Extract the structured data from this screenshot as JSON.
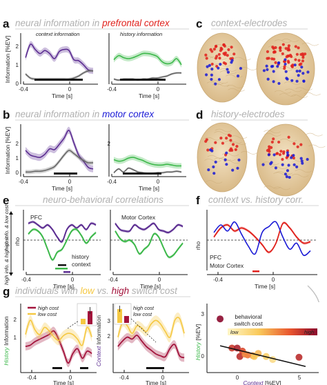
{
  "panel_labels": {
    "a": "a",
    "b": "b",
    "c": "c",
    "d": "d",
    "e": "e",
    "f": "f",
    "g": "g"
  },
  "titles": {
    "a_pre": "neural information in ",
    "a_hl": "prefrontal cortex",
    "b_pre": "neural information in ",
    "b_hl": "motor cortex",
    "c": "context-electrodes",
    "d": "history-electrodes",
    "e": "neuro-behavioral correlations",
    "f": "context vs. history corr.",
    "g_pre": "individuals with ",
    "g_low": "low",
    "g_mid": " vs. ",
    "g_high": "high",
    "g_post": " switch cost"
  },
  "colors": {
    "context": "#5b2c91",
    "history": "#3cb84a",
    "grey": "#666666",
    "pfc": "#e0201b",
    "motor": "#1a1ad6",
    "high_cost": "#a3143c",
    "low_cost": "#f5c842",
    "brain": "#e8cfa2"
  },
  "labels": {
    "info_axis": "Information [%EV]",
    "time_axis": "Time [s]",
    "rho": "rho",
    "context_information": "context information",
    "history_information": "history information",
    "pfc": "PFC",
    "motor_cortex": "Motor Cortex",
    "history": "history",
    "context": "context",
    "e_top_side": "high info. & low cost",
    "e_bottom_side": "high info. & high cost",
    "high_cost": "high cost",
    "low_cost": "low cost",
    "history_info_axis_word": "History",
    "context_info_axis_word": "Context",
    "info_axis_rest": " Information",
    "scatter_x_word": "Context",
    "scatter_x_rest": " [%EV]",
    "scatter_y_word": "History",
    "scatter_y_rest": " [%EV]",
    "behavioral_switch_cost": "behavioral\nswitch cost",
    "low": "low",
    "high": "high"
  },
  "ticks": {
    "t_neg04": "-0.4",
    "t0": "0",
    "y0": "0",
    "y1": "1",
    "y2": "2",
    "y3": "3",
    "sx0": "0",
    "sx5": "5"
  },
  "chart_data": [
    {
      "panel": "a-left",
      "type": "line",
      "xlabel": "Time [s]",
      "ylabel": "Information [%EV]",
      "xlim": [
        -0.5,
        0.3
      ],
      "ylim": [
        -0.2,
        2.3
      ],
      "series": [
        {
          "name": "context information",
          "x": [
            -0.45,
            -0.4,
            -0.35,
            -0.3,
            -0.25,
            -0.2,
            -0.15,
            -0.1,
            -0.05,
            0,
            0.05,
            0.1,
            0.15,
            0.2,
            0.25
          ],
          "values": [
            1.1,
            1.75,
            1.5,
            1.3,
            1.45,
            1.3,
            1.05,
            1.4,
            1.5,
            1.45,
            1.0,
            0.95,
            0.75,
            0.5,
            0.45
          ]
        },
        {
          "x": [
            -0.45,
            -0.4,
            -0.35,
            -0.3,
            -0.25,
            -0.2,
            -0.15,
            -0.1,
            -0.05,
            0,
            0.05,
            0.1,
            0.15,
            0.2,
            0.25
          ],
          "values": [
            0.3,
            0.1,
            0.05,
            0.05,
            0.05,
            0.05,
            0.05,
            0.05,
            0.05,
            0.05,
            0.1,
            0.2,
            0.35,
            0.45,
            0.45
          ]
        }
      ]
    },
    {
      "panel": "a-right",
      "type": "line",
      "xlim": [
        -0.5,
        0.3
      ],
      "ylim": [
        -0.2,
        2.3
      ],
      "series": [
        {
          "name": "history information",
          "x": [
            -0.45,
            -0.4,
            -0.35,
            -0.3,
            -0.25,
            -0.2,
            -0.15,
            -0.1,
            -0.05,
            0,
            0.05,
            0.1,
            0.15,
            0.2,
            0.25
          ],
          "values": [
            1.0,
            1.2,
            1.1,
            1.05,
            1.1,
            1.2,
            1.3,
            1.3,
            1.25,
            1.15,
            0.9,
            0.8,
            0.85,
            1.05,
            0.75
          ]
        },
        {
          "x": [
            -0.45,
            -0.4,
            -0.35,
            -0.3,
            -0.25,
            -0.2,
            -0.15,
            -0.1,
            -0.05,
            0,
            0.05,
            0.1,
            0.15,
            0.2,
            0.25
          ],
          "values": [
            0.05,
            0.0,
            0.05,
            0.05,
            0.05,
            0.0,
            0.05,
            0.05,
            0.1,
            0.1,
            0.15,
            0.2,
            0.3,
            0.35,
            0.35
          ]
        }
      ]
    },
    {
      "panel": "b-left",
      "type": "line",
      "xlim": [
        -0.5,
        0.3
      ],
      "ylim": [
        -0.2,
        3.2
      ],
      "series": [
        {
          "x": [
            -0.45,
            -0.4,
            -0.35,
            -0.3,
            -0.25,
            -0.2,
            -0.15,
            -0.1,
            -0.05,
            0,
            0.05,
            0.1,
            0.15,
            0.2,
            0.25
          ],
          "values": [
            1.5,
            1.2,
            1.1,
            1.05,
            1.25,
            1.6,
            1.55,
            1.9,
            2.3,
            2.8,
            2.0,
            1.2,
            0.8,
            0.4,
            0.3
          ]
        },
        {
          "x": [
            -0.45,
            -0.4,
            -0.35,
            -0.3,
            -0.25,
            -0.2,
            -0.15,
            -0.1,
            -0.05,
            0,
            0.05,
            0.1,
            0.15,
            0.2,
            0.25
          ],
          "values": [
            0.1,
            0.1,
            0.15,
            0.15,
            0.2,
            0.3,
            0.45,
            0.8,
            1.2,
            1.5,
            1.3,
            1.05,
            0.85,
            0.7,
            0.7
          ]
        }
      ]
    },
    {
      "panel": "b-right",
      "type": "line",
      "xlim": [
        -0.5,
        0.3
      ],
      "ylim": [
        -0.2,
        3.2
      ],
      "series": [
        {
          "x": [
            -0.45,
            -0.4,
            -0.35,
            -0.3,
            -0.25,
            -0.2,
            -0.15,
            -0.1,
            -0.05,
            0,
            0.05,
            0.1,
            0.15,
            0.2,
            0.25
          ],
          "values": [
            0.9,
            0.8,
            0.85,
            1.0,
            1.05,
            0.95,
            0.85,
            0.7,
            0.6,
            0.55,
            0.55,
            0.6,
            0.55,
            0.5,
            0.5
          ]
        },
        {
          "x": [
            -0.45,
            -0.4,
            -0.35,
            -0.3,
            -0.25,
            -0.2,
            -0.15,
            -0.1,
            -0.05,
            0,
            0.05,
            0.1,
            0.15,
            0.2,
            0.25
          ],
          "values": [
            0.05,
            0.3,
            0.1,
            0.35,
            0.25,
            0.1,
            0.05,
            0.0,
            0.0,
            0.05,
            0.05,
            0.1,
            0.1,
            0.15,
            0.1
          ]
        }
      ]
    },
    {
      "panel": "e-left",
      "type": "line",
      "xlabel": "Time [s]",
      "ylabel": "rho",
      "xlim": [
        -0.5,
        0.3
      ],
      "ylim": [
        -1,
        1
      ],
      "series": [
        {
          "name": "context",
          "x": [
            -0.45,
            -0.4,
            -0.35,
            -0.3,
            -0.25,
            -0.2,
            -0.15,
            -0.1,
            -0.05,
            0,
            0.05,
            0.1,
            0.15,
            0.2,
            0.25
          ],
          "values": [
            0.55,
            0.6,
            0.5,
            0.4,
            0.5,
            0.35,
            0.1,
            -0.05,
            0.35,
            0.5,
            0.4,
            0.5,
            0.35,
            0.55,
            0.5
          ]
        },
        {
          "name": "history",
          "x": [
            -0.45,
            -0.4,
            -0.35,
            -0.3,
            -0.25,
            -0.2,
            -0.15,
            -0.1,
            -0.05,
            0,
            0.05,
            0.1,
            0.15,
            0.2,
            0.25
          ],
          "values": [
            0.2,
            0.35,
            0.3,
            0.1,
            -0.3,
            -0.65,
            -0.4,
            -0.3,
            0.0,
            0.3,
            0.35,
            0.15,
            -0.1,
            0.1,
            0.25
          ]
        }
      ]
    },
    {
      "panel": "e-right",
      "type": "line",
      "xlim": [
        -0.5,
        0.3
      ],
      "ylim": [
        -1,
        1
      ],
      "series": [
        {
          "x": [
            -0.45,
            -0.4,
            -0.35,
            -0.3,
            -0.25,
            -0.2,
            -0.15,
            -0.1,
            -0.05,
            0,
            0.05,
            0.1,
            0.15,
            0.2,
            0.25
          ],
          "values": [
            0.55,
            0.35,
            0.3,
            0.3,
            0.5,
            0.4,
            0.35,
            0.45,
            0.55,
            0.35,
            0.3,
            0.25,
            0.35,
            0.5,
            0.45
          ]
        },
        {
          "x": [
            -0.45,
            -0.4,
            -0.35,
            -0.3,
            -0.25,
            -0.2,
            -0.15,
            -0.1,
            -0.05,
            0,
            0.05,
            0.1,
            0.15,
            0.2,
            0.25
          ],
          "values": [
            0.3,
            0.05,
            -0.05,
            0.0,
            -0.15,
            -0.45,
            -0.3,
            -0.15,
            0.2,
            0.1,
            -0.25,
            -0.55,
            -0.5,
            -0.3,
            -0.1
          ]
        }
      ]
    },
    {
      "panel": "f",
      "type": "line",
      "xlim": [
        -0.5,
        0.3
      ],
      "ylim": [
        -1,
        1
      ],
      "series": [
        {
          "name": "PFC",
          "x": [
            -0.45,
            -0.4,
            -0.35,
            -0.3,
            -0.25,
            -0.2,
            -0.15,
            -0.1,
            -0.05,
            0,
            0.05,
            0.1,
            0.15,
            0.2,
            0.25
          ],
          "values": [
            0.1,
            0.4,
            0.5,
            0.3,
            0.4,
            0.3,
            0.1,
            -0.15,
            -0.4,
            -0.1,
            0.55,
            0.4,
            0.1,
            -0.1,
            -0.05
          ]
        },
        {
          "name": "Motor Cortex",
          "x": [
            -0.45,
            -0.4,
            -0.35,
            -0.3,
            -0.25,
            -0.2,
            -0.15,
            -0.1,
            -0.05,
            0,
            0.05,
            0.1,
            0.15,
            0.2,
            0.25
          ],
          "values": [
            0.25,
            0.5,
            0.3,
            0.6,
            0.2,
            -0.2,
            -0.45,
            0.25,
            0.45,
            0.6,
            0.1,
            -0.3,
            -0.1,
            -0.5,
            -0.35
          ]
        }
      ]
    },
    {
      "panel": "g-left",
      "type": "line",
      "xlabel": "Time [s]",
      "ylabel": "History Information",
      "xlim": [
        -0.5,
        0.3
      ],
      "ylim": [
        -0.3,
        2.6
      ],
      "series": [
        {
          "name": "high cost",
          "x": [
            -0.45,
            -0.4,
            -0.35,
            -0.3,
            -0.25,
            -0.2,
            -0.15,
            -0.1,
            -0.05,
            0,
            0.05,
            0.1,
            0.15,
            0.2,
            0.25
          ],
          "values": [
            0.8,
            0.85,
            1.0,
            1.1,
            1.2,
            1.3,
            1.45,
            1.1,
            0.6,
            0.1,
            0.5,
            0.7,
            0.3,
            0.6,
            0.5
          ]
        },
        {
          "name": "low cost",
          "x": [
            -0.45,
            -0.4,
            -0.35,
            -0.3,
            -0.25,
            -0.2,
            -0.15,
            -0.1,
            -0.05,
            0,
            0.05,
            0.1,
            0.15,
            0.2,
            0.25
          ],
          "values": [
            1.3,
            1.9,
            1.5,
            1.3,
            1.6,
            1.45,
            1.2,
            1.05,
            1.25,
            1.35,
            1.3,
            1.1,
            0.85,
            1.6,
            1.2
          ]
        }
      ]
    },
    {
      "panel": "g-middle",
      "type": "line",
      "xlabel": "Time [s]",
      "ylabel": "Context Information",
      "xlim": [
        -0.5,
        0.3
      ],
      "ylim": [
        -0.3,
        3.4
      ],
      "series": [
        {
          "name": "high cost",
          "x": [
            -0.45,
            -0.4,
            -0.35,
            -0.3,
            -0.25,
            -0.2,
            -0.15,
            -0.1,
            -0.05,
            0,
            0.05,
            0.1,
            0.15,
            0.2,
            0.25
          ],
          "values": [
            1.1,
            1.4,
            1.6,
            1.5,
            1.7,
            1.4,
            1.1,
            0.9,
            0.7,
            0.6,
            0.55,
            1.0,
            1.2,
            0.6,
            0.5
          ]
        },
        {
          "name": "low cost",
          "x": [
            -0.45,
            -0.4,
            -0.35,
            -0.3,
            -0.25,
            -0.2,
            -0.15,
            -0.1,
            -0.05,
            0,
            0.05,
            0.1,
            0.15,
            0.2,
            0.25
          ],
          "values": [
            1.6,
            2.4,
            2.2,
            1.8,
            2.2,
            2.1,
            1.9,
            2.3,
            2.5,
            2.3,
            1.9,
            1.6,
            2.5,
            2.6,
            1.8
          ]
        }
      ]
    },
    {
      "panel": "g-scatter",
      "type": "scatter",
      "xlabel": "Context [%EV]",
      "ylabel": "History [%EV]",
      "xlim": [
        -2.5,
        6
      ],
      "ylim": [
        -0.5,
        4
      ],
      "x": [
        -1.5,
        -0.6,
        -0.2,
        0.2,
        0.6,
        1.0,
        1.4,
        2.0,
        2.5,
        4.5,
        0.0,
        1.1,
        0.4
      ],
      "values": [
        3.0,
        1.1,
        1.1,
        0.9,
        0.65,
        0.6,
        0.75,
        0.55,
        0.35,
        0.5,
        0.55,
        0.55,
        0.7
      ],
      "cost_rank": [
        1.0,
        0.8,
        0.9,
        0.75,
        0.6,
        0.5,
        0.4,
        0.3,
        0.2,
        0.85,
        0.85,
        0.35,
        0.55
      ],
      "regression": {
        "x": [
          -1.5,
          5.0
        ],
        "y": [
          1.25,
          -0.1
        ]
      }
    }
  ]
}
